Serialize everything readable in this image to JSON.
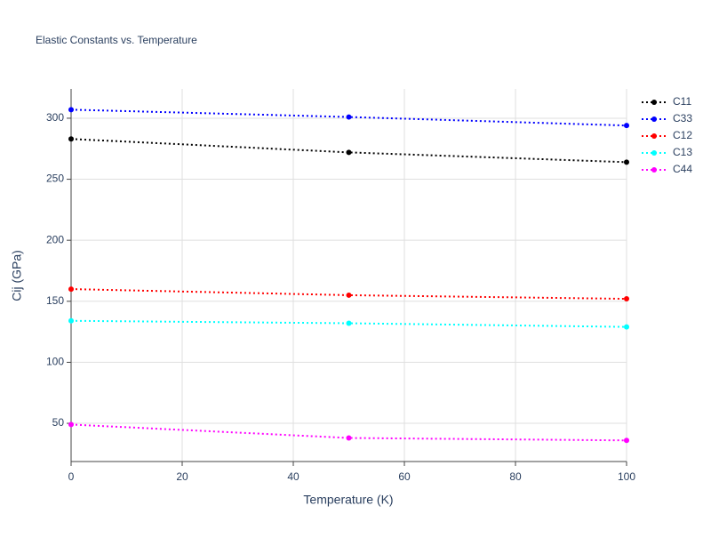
{
  "chart_data": {
    "type": "line",
    "title": "Elastic Constants vs. Temperature",
    "x_label": "Temperature (K)",
    "y_label": "Cij (GPa)",
    "x": [
      0,
      50,
      100
    ],
    "series": [
      {
        "name": "C11",
        "color": "#000000",
        "values": [
          283,
          272,
          264
        ]
      },
      {
        "name": "C33",
        "color": "#0000ff",
        "values": [
          307,
          301,
          294
        ]
      },
      {
        "name": "C12",
        "color": "#ff0000",
        "values": [
          160,
          155,
          152
        ]
      },
      {
        "name": "C13",
        "color": "#00ffff",
        "values": [
          134,
          132,
          129
        ]
      },
      {
        "name": "C44",
        "color": "#ff00ff",
        "values": [
          49,
          38,
          36
        ]
      }
    ],
    "xlim": [
      0,
      100
    ],
    "xticks": [
      0,
      20,
      40,
      60,
      80,
      100
    ],
    "ylim": [
      18.7,
      324
    ],
    "yticks": [
      50,
      100,
      150,
      200,
      250,
      300
    ],
    "grid": true,
    "legend": "right"
  }
}
